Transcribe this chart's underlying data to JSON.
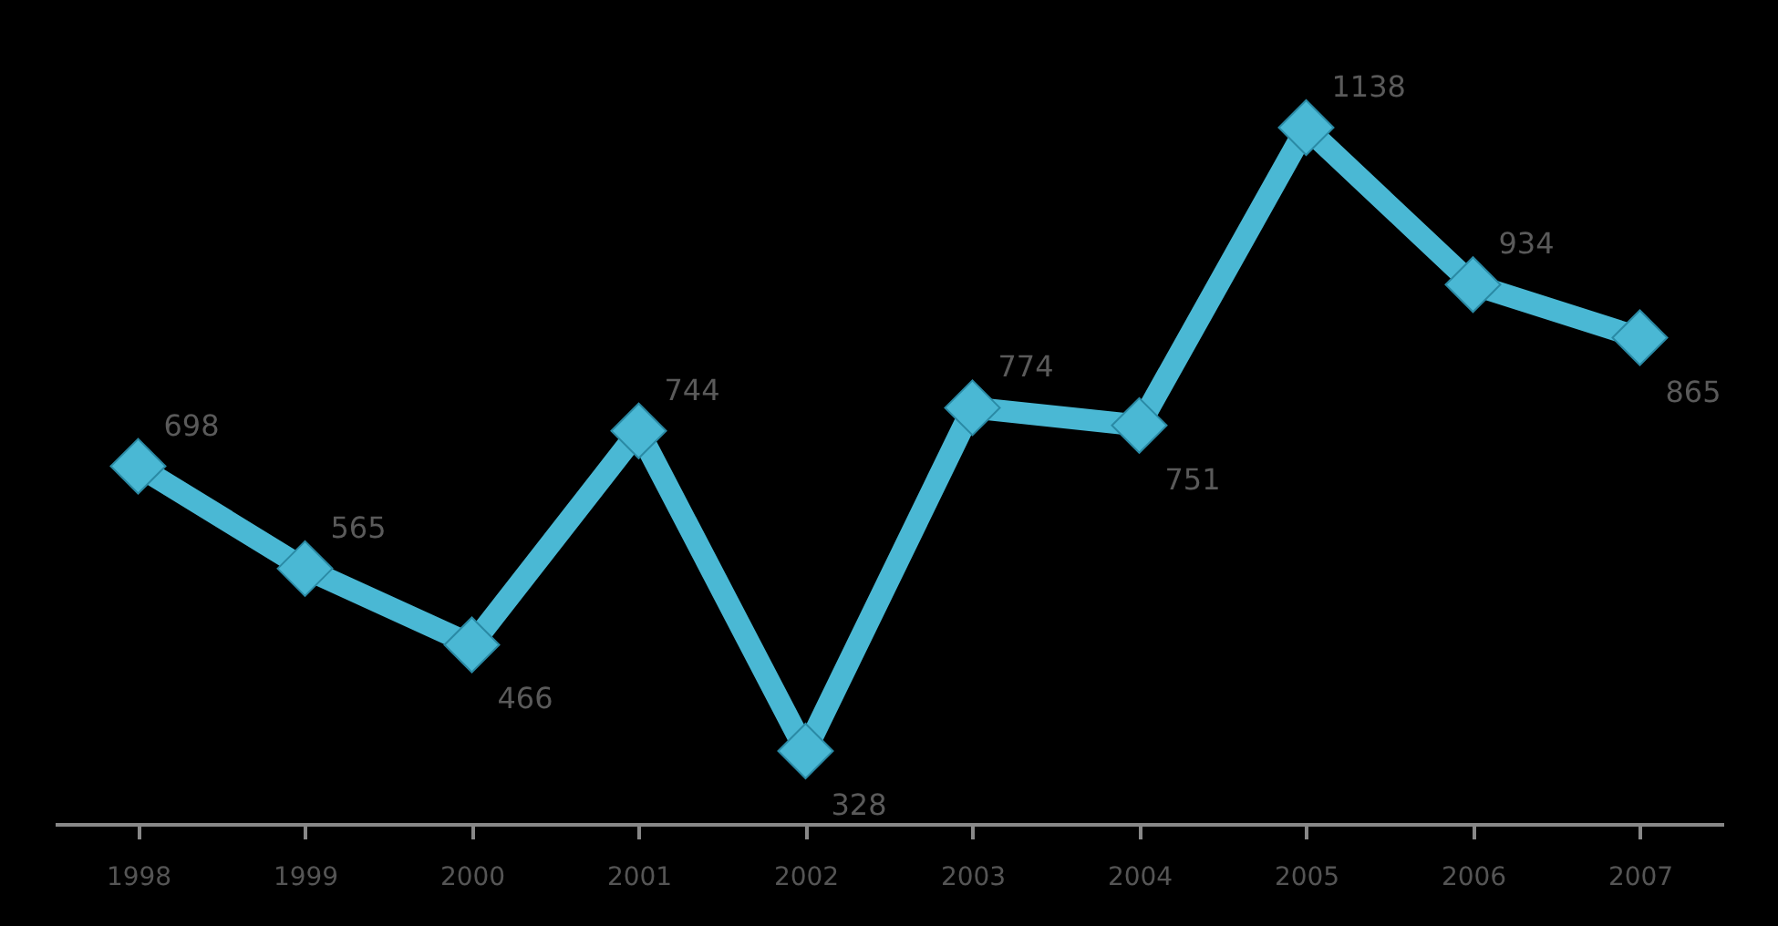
{
  "chart_data": {
    "type": "line",
    "categories": [
      "1998",
      "1999",
      "2000",
      "2001",
      "2002",
      "2003",
      "2004",
      "2005",
      "2006",
      "2007"
    ],
    "series": [
      {
        "color": "#4ab8d4",
        "values": [
          698,
          565,
          466,
          744,
          328,
          774,
          751,
          1138,
          934,
          865
        ]
      }
    ],
    "data_labels": true,
    "marker": "diamond",
    "line_style": "solid",
    "grid": false
  }
}
